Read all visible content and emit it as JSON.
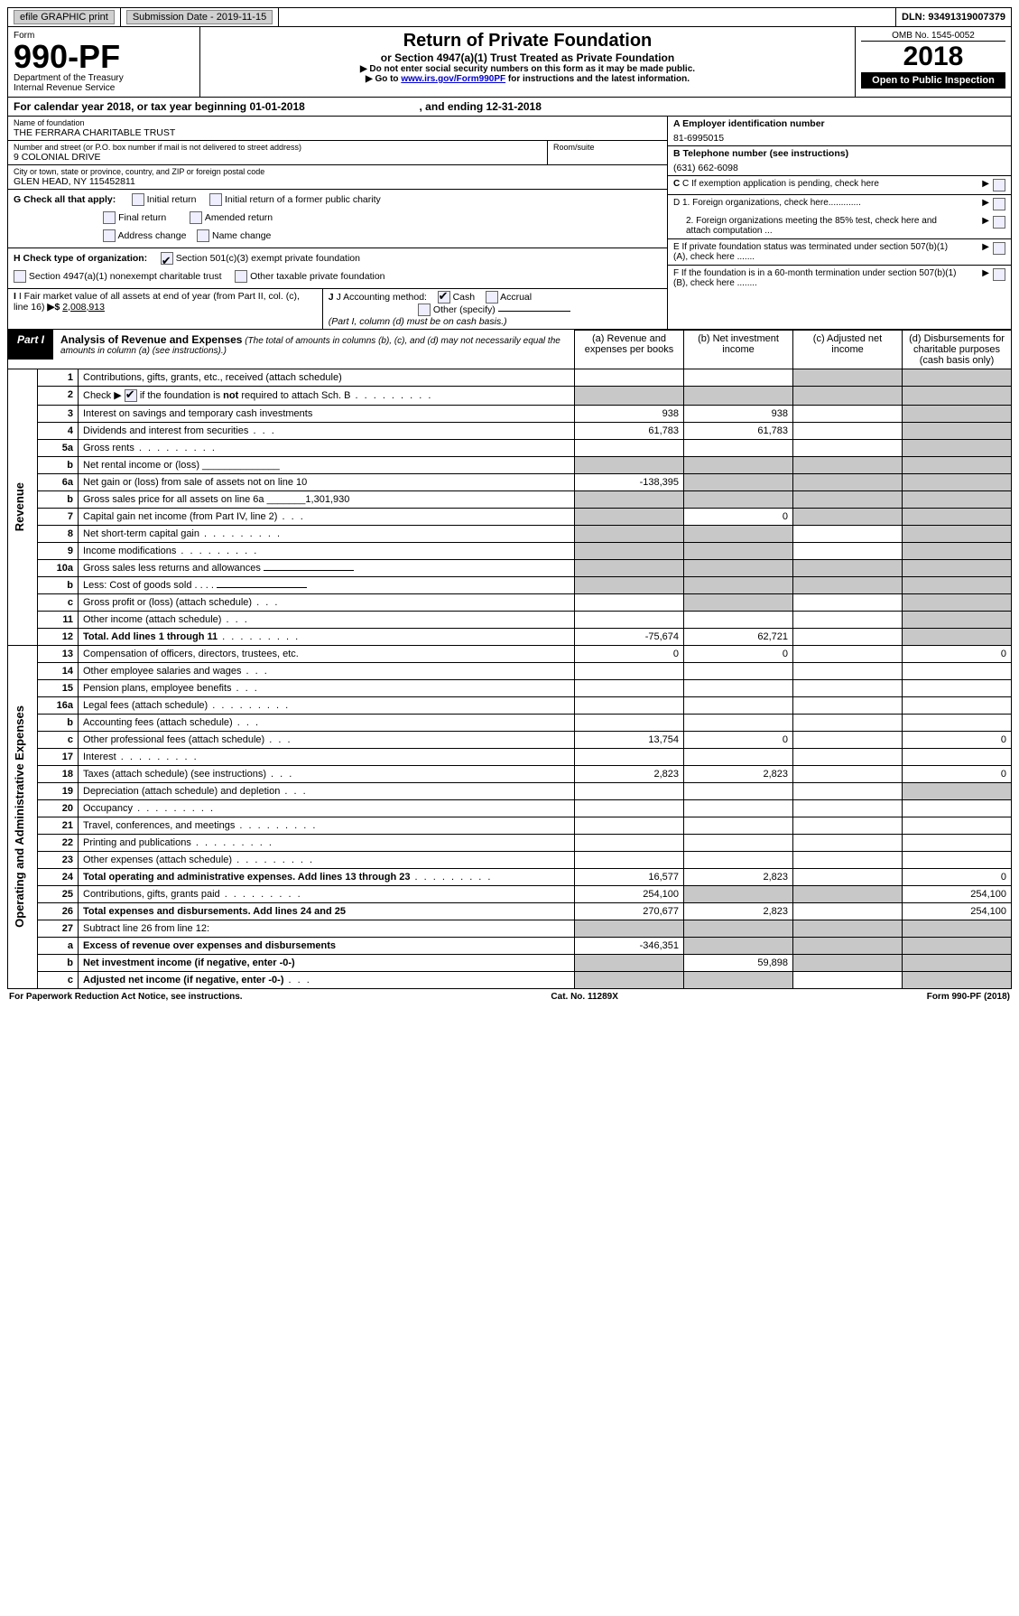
{
  "top": {
    "efile": "efile GRAPHIC print",
    "subLabel": "Submission Date - 2019-11-15",
    "dln": "DLN: 93491319007379"
  },
  "header": {
    "formWord": "Form",
    "formNum": "990-PF",
    "dept1": "Department of the Treasury",
    "dept2": "Internal Revenue Service",
    "title": "Return of Private Foundation",
    "subtitle": "or Section 4947(a)(1) Trust Treated as Private Foundation",
    "note1": "▶ Do not enter social security numbers on this form as it may be made public.",
    "note2a": "▶ Go to ",
    "note2link": "www.irs.gov/Form990PF",
    "note2b": " for instructions and the latest information.",
    "omb": "OMB No. 1545-0052",
    "year": "2018",
    "open": "Open to Public Inspection"
  },
  "calYear": {
    "a": "For calendar year 2018, or tax year beginning 01-01-2018",
    "b": ", and ending 12-31-2018"
  },
  "info": {
    "nameLabel": "Name of foundation",
    "name": "THE FERRARA CHARITABLE TRUST",
    "addrLabel": "Number and street (or P.O. box number if mail is not delivered to street address)",
    "addr": "9 COLONIAL DRIVE",
    "roomLabel": "Room/suite",
    "cityLabel": "City or town, state or province, country, and ZIP or foreign postal code",
    "city": "GLEN HEAD, NY  115452811",
    "einLabel": "A Employer identification number",
    "ein": "81-6995015",
    "telLabel": "B Telephone number (see instructions)",
    "tel": "(631) 662-6098",
    "C": "C If exemption application is pending, check here",
    "D1": "D 1. Foreign organizations, check here.............",
    "D2": "2. Foreign organizations meeting the 85% test, check here and attach computation ...",
    "E": "E  If private foundation status was terminated under section 507(b)(1)(A), check here .......",
    "F": "F  If the foundation is in a 60-month termination under section 507(b)(1)(B), check here ........"
  },
  "G": {
    "label": "G Check all that apply:",
    "opts": [
      "Initial return",
      "Initial return of a former public charity",
      "Final return",
      "Amended return",
      "Address change",
      "Name change"
    ]
  },
  "H": {
    "label": "H Check type of organization:",
    "o1": "Section 501(c)(3) exempt private foundation",
    "o2": "Section 4947(a)(1) nonexempt charitable trust",
    "o3": "Other taxable private foundation"
  },
  "I": {
    "label": "I Fair market value of all assets at end of year (from Part II, col. (c), line 16)",
    "arrow": "▶$",
    "val": "2,008,913"
  },
  "J": {
    "label": "J Accounting method:",
    "cash": "Cash",
    "accrual": "Accrual",
    "other": "Other (specify)",
    "note": "(Part I, column (d) must be on cash basis.)"
  },
  "part1": {
    "label": "Part I",
    "title": "Analysis of Revenue and Expenses",
    "titleNote": " (The total of amounts in columns (b), (c), and (d) may not necessarily equal the amounts in column (a) (see instructions).)",
    "colA": "(a)   Revenue and expenses per books",
    "colB": "(b)  Net investment income",
    "colC": "(c)  Adjusted net income",
    "colD": "(d)  Disbursements for charitable purposes (cash basis only)"
  },
  "sideRev": "Revenue",
  "sideExp": "Operating and Administrative Expenses",
  "rows": [
    {
      "n": "1",
      "d": "Contributions, gifts, grants, etc., received (attach schedule)",
      "a": "",
      "b": "",
      "c": "s",
      "dd": "s"
    },
    {
      "n": "2",
      "d": "Check ▶  [CHK]  if the foundation is not required to attach Sch. B",
      "dots": true,
      "a": "s",
      "b": "s",
      "c": "s",
      "dd": "s"
    },
    {
      "n": "3",
      "d": "Interest on savings and temporary cash investments",
      "a": "938",
      "b": "938",
      "c": "",
      "dd": "s"
    },
    {
      "n": "4",
      "d": "Dividends and interest from securities",
      "dots": "short",
      "a": "61,783",
      "b": "61,783",
      "c": "",
      "dd": "s"
    },
    {
      "n": "5a",
      "d": "Gross rents",
      "dots": true,
      "a": "",
      "b": "",
      "c": "",
      "dd": "s"
    },
    {
      "n": "b",
      "d": "Net rental income or (loss)  ______________",
      "a": "s",
      "b": "s",
      "c": "s",
      "dd": "s"
    },
    {
      "n": "6a",
      "d": "Net gain or (loss) from sale of assets not on line 10",
      "a": "-138,395",
      "b": "s",
      "c": "s",
      "dd": "s"
    },
    {
      "n": "b",
      "d": "Gross sales price for all assets on line 6a _______1,301,930",
      "a": "s",
      "b": "s",
      "c": "s",
      "dd": "s"
    },
    {
      "n": "7",
      "d": "Capital gain net income (from Part IV, line 2)",
      "dots": "short",
      "a": "s",
      "b": "0",
      "c": "s",
      "dd": "s"
    },
    {
      "n": "8",
      "d": "Net short-term capital gain",
      "dots": true,
      "a": "s",
      "b": "s",
      "c": "",
      "dd": "s"
    },
    {
      "n": "9",
      "d": "Income modifications",
      "dots": true,
      "a": "s",
      "b": "s",
      "c": "",
      "dd": "s"
    },
    {
      "n": "10a",
      "d": "Gross sales less returns and allowances   [____]",
      "a": "s",
      "b": "s",
      "c": "s",
      "dd": "s"
    },
    {
      "n": "b",
      "d": "Less: Cost of goods sold        .  .  .  .     [____]",
      "a": "s",
      "b": "s",
      "c": "s",
      "dd": "s"
    },
    {
      "n": "c",
      "d": "Gross profit or (loss) (attach schedule)",
      "dots": "short",
      "a": "",
      "b": "s",
      "c": "",
      "dd": "s"
    },
    {
      "n": "11",
      "d": "Other income (attach schedule)",
      "dots": "short",
      "a": "",
      "b": "",
      "c": "",
      "dd": "s"
    },
    {
      "n": "12",
      "d": "Total. Add lines 1 through 11",
      "bold": true,
      "dots": true,
      "a": "-75,674",
      "b": "62,721",
      "c": "",
      "dd": "s"
    }
  ],
  "erows": [
    {
      "n": "13",
      "d": "Compensation of officers, directors, trustees, etc.",
      "a": "0",
      "b": "0",
      "c": "",
      "dd": "0"
    },
    {
      "n": "14",
      "d": "Other employee salaries and wages",
      "dots": "short",
      "a": "",
      "b": "",
      "c": "",
      "dd": ""
    },
    {
      "n": "15",
      "d": "Pension plans, employee benefits",
      "dots": "short",
      "a": "",
      "b": "",
      "c": "",
      "dd": ""
    },
    {
      "n": "16a",
      "d": "Legal fees (attach schedule)",
      "dots": true,
      "a": "",
      "b": "",
      "c": "",
      "dd": ""
    },
    {
      "n": "b",
      "d": "Accounting fees (attach schedule)",
      "dots": "short",
      "a": "",
      "b": "",
      "c": "",
      "dd": ""
    },
    {
      "n": "c",
      "d": "Other professional fees (attach schedule)",
      "dots": "short",
      "a": "13,754",
      "b": "0",
      "c": "",
      "dd": "0"
    },
    {
      "n": "17",
      "d": "Interest",
      "dots": true,
      "a": "",
      "b": "",
      "c": "",
      "dd": ""
    },
    {
      "n": "18",
      "d": "Taxes (attach schedule) (see instructions)",
      "dots": "short",
      "a": "2,823",
      "b": "2,823",
      "c": "",
      "dd": "0"
    },
    {
      "n": "19",
      "d": "Depreciation (attach schedule) and depletion",
      "dots": "short",
      "a": "",
      "b": "",
      "c": "",
      "dd": "s"
    },
    {
      "n": "20",
      "d": "Occupancy",
      "dots": true,
      "a": "",
      "b": "",
      "c": "",
      "dd": ""
    },
    {
      "n": "21",
      "d": "Travel, conferences, and meetings",
      "dots": true,
      "a": "",
      "b": "",
      "c": "",
      "dd": ""
    },
    {
      "n": "22",
      "d": "Printing and publications",
      "dots": true,
      "a": "",
      "b": "",
      "c": "",
      "dd": ""
    },
    {
      "n": "23",
      "d": "Other expenses (attach schedule)",
      "dots": true,
      "a": "",
      "b": "",
      "c": "",
      "dd": ""
    },
    {
      "n": "24",
      "d": "Total operating and administrative expenses. Add lines 13 through 23",
      "bold": true,
      "dots": true,
      "a": "16,577",
      "b": "2,823",
      "c": "",
      "dd": "0"
    },
    {
      "n": "25",
      "d": "Contributions, gifts, grants paid",
      "dots": true,
      "a": "254,100",
      "b": "s",
      "c": "s",
      "dd": "254,100"
    },
    {
      "n": "26",
      "d": "Total expenses and disbursements. Add lines 24 and 25",
      "bold": true,
      "a": "270,677",
      "b": "2,823",
      "c": "",
      "dd": "254,100"
    },
    {
      "n": "27",
      "d": "Subtract line 26 from line 12:",
      "a": "s",
      "b": "s",
      "c": "s",
      "dd": "s"
    },
    {
      "n": "a",
      "d": "Excess of revenue over expenses and disbursements",
      "bold": true,
      "a": "-346,351",
      "b": "s",
      "c": "s",
      "dd": "s"
    },
    {
      "n": "b",
      "d": "Net investment income (if negative, enter -0-)",
      "bold": true,
      "a": "s",
      "b": "59,898",
      "c": "s",
      "dd": "s"
    },
    {
      "n": "c",
      "d": "Adjusted net income (if negative, enter -0-)",
      "bold": true,
      "dots": "short",
      "a": "s",
      "b": "s",
      "c": "",
      "dd": "s"
    }
  ],
  "footer": {
    "left": "For Paperwork Reduction Act Notice, see instructions.",
    "mid": "Cat. No. 11289X",
    "right": "Form 990-PF (2018)"
  }
}
